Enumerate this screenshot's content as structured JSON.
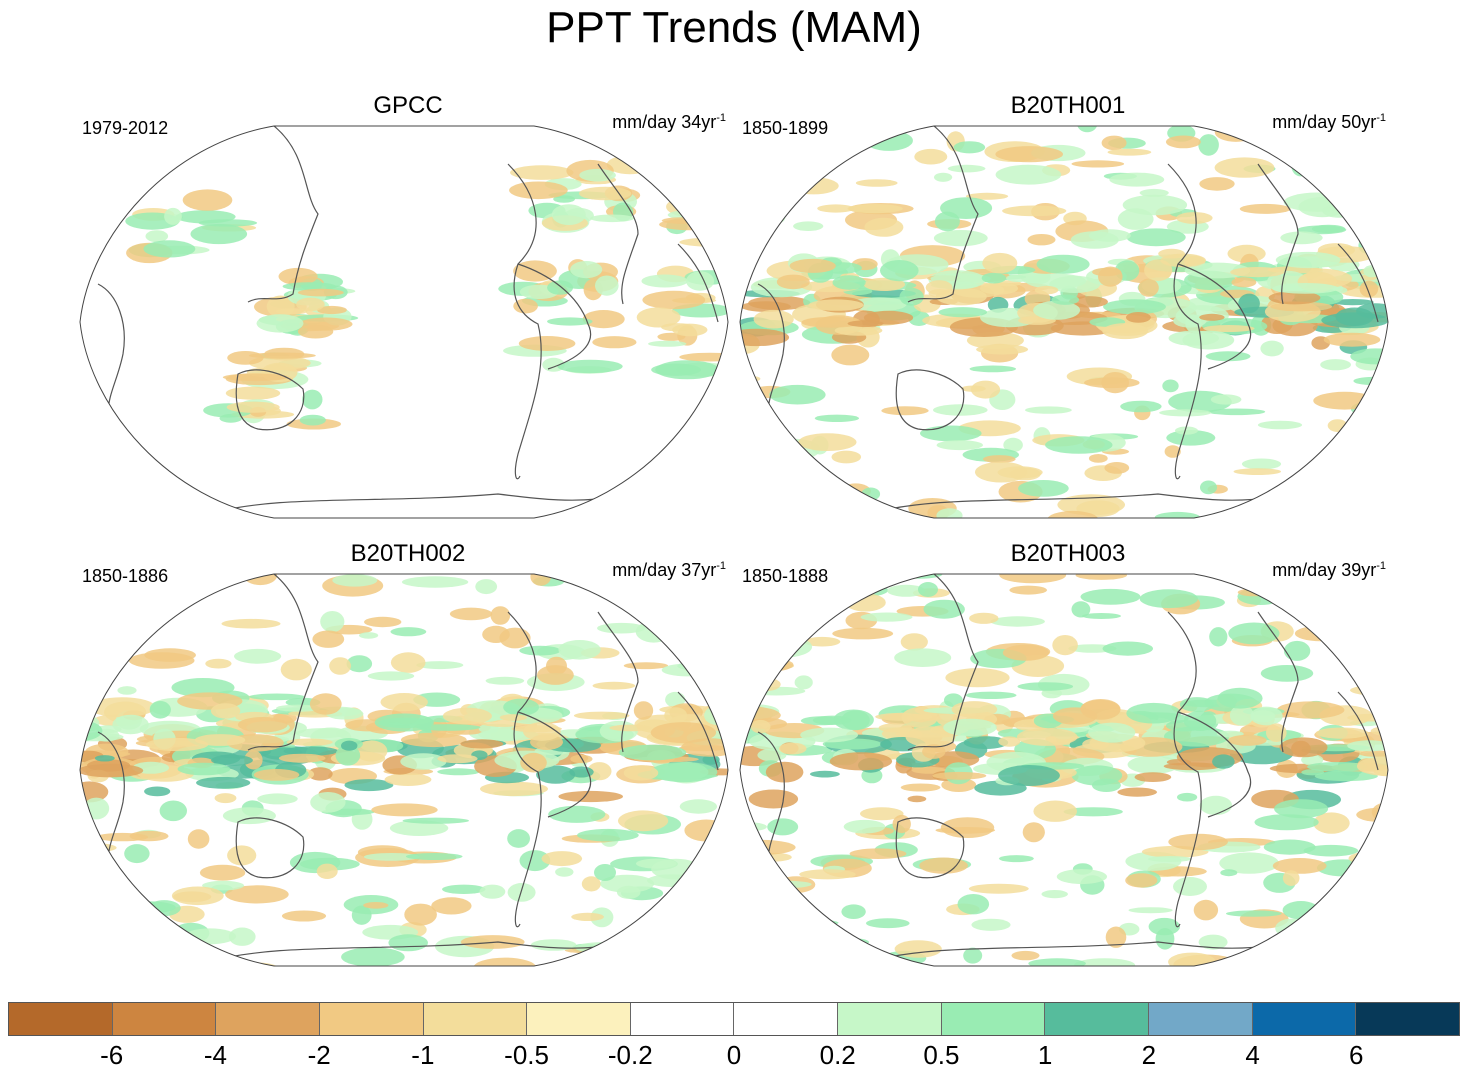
{
  "figure": {
    "title": "PPT Trends (MAM)"
  },
  "panels": [
    {
      "name": "GPCC",
      "years": "1979-2012",
      "units_text": "mm/day 34yr",
      "units_exp": "-1"
    },
    {
      "name": "B20TH001",
      "years": "1850-1899",
      "units_text": "mm/day 50yr",
      "units_exp": "-1"
    },
    {
      "name": "B20TH002",
      "years": "1850-1886",
      "units_text": "mm/day 37yr",
      "units_exp": "-1"
    },
    {
      "name": "B20TH003",
      "years": "1850-1888",
      "units_text": "mm/day 39yr",
      "units_exp": "-1"
    }
  ],
  "colorbar": {
    "labels": [
      "-6",
      "-4",
      "-2",
      "-1",
      "-0.5",
      "-0.2",
      "0",
      "0.2",
      "0.5",
      "1",
      "2",
      "4",
      "6"
    ],
    "colors": [
      "#b4692a",
      "#cd8540",
      "#dea35e",
      "#f1c983",
      "#f3dd9b",
      "#fcf1bd",
      "#ffffff",
      "#ffffff",
      "#c6f7c8",
      "#99ecb3",
      "#56bc9c",
      "#72a8c8",
      "#0c69a9",
      "#073958"
    ]
  },
  "map_style": {
    "coast_color": "#555555",
    "frame_color": "#444444"
  }
}
